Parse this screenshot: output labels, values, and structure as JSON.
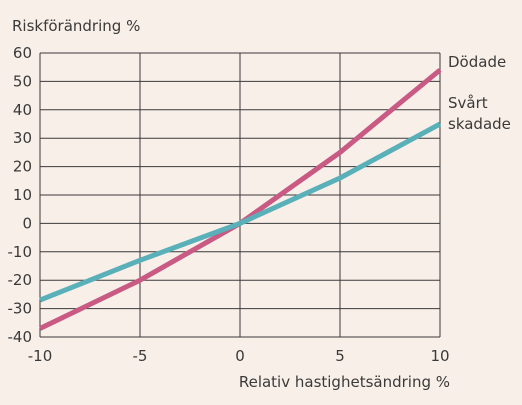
{
  "chart_data": {
    "type": "line",
    "title": "",
    "ylabel": "Riskförändring %",
    "xlabel": "Relativ hastighetsändring %",
    "xlim": [
      -10,
      10
    ],
    "ylim": [
      -40,
      60
    ],
    "x_ticks": [
      -10,
      -5,
      0,
      5,
      10
    ],
    "y_ticks": [
      60,
      50,
      40,
      30,
      20,
      10,
      0,
      -10,
      -20,
      -30,
      -40
    ],
    "x_tick_labels": [
      "-10",
      "-5",
      "0",
      "5",
      "10"
    ],
    "y_tick_labels": [
      "60",
      "50",
      "40",
      "30",
      "20",
      "10",
      "0",
      "-10",
      "-20",
      "-30",
      "-40"
    ],
    "grid": true,
    "series": [
      {
        "name": "Dödade",
        "label_lines": [
          "Dödade"
        ],
        "color": "#c85a84",
        "x": [
          -10,
          -5,
          0,
          5,
          10
        ],
        "y": [
          -37,
          -20,
          0,
          25,
          54
        ]
      },
      {
        "name": "Svårt skadade",
        "label_lines": [
          "Svårt",
          "skadade"
        ],
        "color": "#5ab0b9",
        "x": [
          -10,
          -5,
          0,
          5,
          10
        ],
        "y": [
          -27,
          -13,
          0,
          16,
          35
        ]
      }
    ]
  }
}
